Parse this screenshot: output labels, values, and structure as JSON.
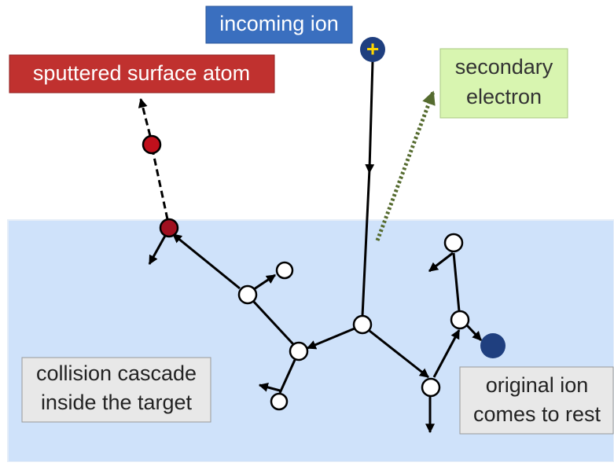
{
  "labels": {
    "incoming_ion": "incoming ion",
    "ion_charge": "+",
    "sputtered_atom": "sputtered surface atom",
    "secondary_electron": [
      "secondary",
      "electron"
    ],
    "collision_cascade": [
      "collision cascade",
      "inside the target"
    ],
    "original_ion": [
      "original ion",
      "comes to rest"
    ]
  }
}
